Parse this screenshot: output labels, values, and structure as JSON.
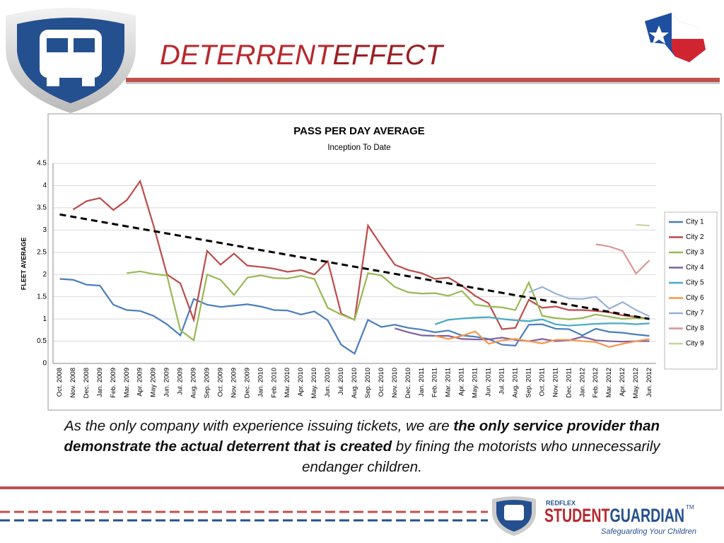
{
  "header": {
    "title_a": "DETERRENT",
    "title_b": "EFFECT"
  },
  "chart_data": {
    "type": "line",
    "title": "PASS PER DAY AVERAGE",
    "subtitle": "Inception To Date",
    "ylabel": "FLEET AVERAGE",
    "categories": [
      "Oct. 2008",
      "Nov. 2008",
      "Dec. 2008",
      "Jan. 2009",
      "Feb. 2009",
      "Mar. 2009",
      "Apr. 2009",
      "May 2009",
      "Jun. 2009",
      "Jul. 2009",
      "Aug. 2009",
      "Sep. 2009",
      "Oct. 2009",
      "Nov. 2009",
      "Dec. 2009",
      "Jan. 2010",
      "Feb. 2010",
      "Mar. 2010",
      "Apr. 2010",
      "May. 2010",
      "Jun. 2010",
      "Jul. 2010",
      "Aug. 2010",
      "Sep. 2010",
      "Oct. 2010",
      "Nov. 2010",
      "Dec. 2010",
      "Jan. 2011",
      "Feb. 2011",
      "Mar. 2011",
      "Apr. 2011",
      "May. 2011",
      "Jun. 2011",
      "Jul. 2011",
      "Aug. 2011",
      "Sep. 2011",
      "Oct. 2011",
      "Nov. 2011",
      "Dec. 2011",
      "Jan. 2012",
      "Feb. 2012",
      "Mar. 2012",
      "Apr. 2012",
      "May. 2012",
      "Jun. 2012"
    ],
    "series": [
      {
        "name": "City 1",
        "color": "#4a7ebb",
        "values": [
          1.9,
          1.88,
          1.77,
          1.75,
          1.32,
          1.2,
          1.18,
          1.07,
          0.88,
          0.63,
          1.45,
          1.32,
          1.27,
          1.3,
          1.33,
          1.28,
          1.2,
          1.19,
          1.1,
          1.17,
          0.97,
          0.42,
          0.22,
          0.98,
          0.82,
          0.87,
          0.8,
          0.76,
          0.7,
          0.74,
          0.63,
          0.6,
          0.55,
          0.42,
          0.4,
          0.87,
          0.88,
          0.78,
          0.77,
          0.63,
          0.78,
          0.71,
          0.69,
          0.65,
          0.62
        ]
      },
      {
        "name": "City 2",
        "color": "#be4b48",
        "values": [
          null,
          3.46,
          3.65,
          3.72,
          3.45,
          3.67,
          4.1,
          3.1,
          2.0,
          1.8,
          0.98,
          2.53,
          2.22,
          2.47,
          2.2,
          2.17,
          2.13,
          2.06,
          2.1,
          2.0,
          2.3,
          1.12,
          0.98,
          3.1,
          2.65,
          2.22,
          2.1,
          2.03,
          1.9,
          1.93,
          1.75,
          1.52,
          1.35,
          0.77,
          0.8,
          1.43,
          1.25,
          1.28,
          1.2,
          1.2,
          1.18,
          1.15,
          1.08,
          1.05,
          1.0
        ]
      },
      {
        "name": "City 3",
        "color": "#98b954",
        "values": [
          null,
          null,
          null,
          null,
          null,
          2.03,
          2.07,
          2.01,
          1.98,
          0.75,
          0.52,
          2.0,
          1.88,
          1.54,
          1.93,
          1.98,
          1.92,
          1.91,
          1.97,
          1.9,
          1.25,
          1.1,
          0.98,
          2.03,
          1.98,
          1.72,
          1.6,
          1.57,
          1.58,
          1.52,
          1.63,
          1.32,
          1.28,
          1.26,
          1.2,
          1.82,
          1.07,
          1.02,
          0.99,
          1.02,
          1.1,
          1.05,
          1.0,
          1.02,
          1.0
        ]
      },
      {
        "name": "City 4",
        "color": "#7d60a0",
        "values": [
          null,
          null,
          null,
          null,
          null,
          null,
          null,
          null,
          null,
          null,
          null,
          null,
          null,
          null,
          null,
          null,
          null,
          null,
          null,
          null,
          null,
          null,
          null,
          null,
          null,
          0.79,
          0.7,
          0.63,
          0.62,
          0.62,
          0.55,
          0.54,
          0.54,
          0.58,
          0.53,
          0.5,
          0.55,
          0.5,
          0.52,
          0.6,
          0.52,
          0.5,
          0.49,
          0.5,
          0.5
        ]
      },
      {
        "name": "City 5",
        "color": "#46aac5",
        "values": [
          null,
          null,
          null,
          null,
          null,
          null,
          null,
          null,
          null,
          null,
          null,
          null,
          null,
          null,
          null,
          null,
          null,
          null,
          null,
          null,
          null,
          null,
          null,
          null,
          null,
          null,
          null,
          null,
          0.88,
          0.98,
          1.01,
          1.03,
          1.04,
          1.0,
          0.97,
          0.95,
          0.99,
          0.88,
          0.85,
          0.87,
          0.89,
          0.9,
          0.9,
          0.88,
          0.9
        ]
      },
      {
        "name": "City 6",
        "color": "#f79646",
        "values": [
          null,
          null,
          null,
          null,
          null,
          null,
          null,
          null,
          null,
          null,
          null,
          null,
          null,
          null,
          null,
          null,
          null,
          null,
          null,
          null,
          null,
          null,
          null,
          null,
          null,
          null,
          null,
          null,
          0.62,
          0.55,
          0.62,
          0.72,
          0.44,
          0.52,
          0.55,
          0.5,
          0.45,
          0.53,
          0.53,
          0.5,
          0.48,
          0.37,
          0.44,
          0.5,
          0.55
        ]
      },
      {
        "name": "City 7",
        "color": "#95b3d7",
        "values": [
          null,
          null,
          null,
          null,
          null,
          null,
          null,
          null,
          null,
          null,
          null,
          null,
          null,
          null,
          null,
          null,
          null,
          null,
          null,
          null,
          null,
          null,
          null,
          null,
          null,
          null,
          null,
          null,
          null,
          null,
          null,
          null,
          null,
          null,
          null,
          1.6,
          1.72,
          1.57,
          1.46,
          1.45,
          1.5,
          1.23,
          1.38,
          1.2,
          1.06
        ]
      },
      {
        "name": "City 8",
        "color": "#d99694",
        "values": [
          null,
          null,
          null,
          null,
          null,
          null,
          null,
          null,
          null,
          null,
          null,
          null,
          null,
          null,
          null,
          null,
          null,
          null,
          null,
          null,
          null,
          null,
          null,
          null,
          null,
          null,
          null,
          null,
          null,
          null,
          null,
          null,
          null,
          null,
          null,
          null,
          null,
          null,
          null,
          null,
          2.68,
          2.63,
          2.53,
          2.02,
          2.32
        ]
      },
      {
        "name": "City 9",
        "color": "#c3d69b",
        "values": [
          null,
          null,
          null,
          null,
          null,
          null,
          null,
          null,
          null,
          null,
          null,
          null,
          null,
          null,
          null,
          null,
          null,
          null,
          null,
          null,
          null,
          null,
          null,
          null,
          null,
          null,
          null,
          null,
          null,
          null,
          null,
          null,
          null,
          null,
          null,
          null,
          null,
          null,
          null,
          null,
          null,
          null,
          null,
          3.12,
          3.1
        ]
      }
    ],
    "trendline": [
      3.35,
      1.0
    ],
    "ylim": [
      0,
      4.5
    ],
    "yticks": [
      0,
      0.5,
      1,
      1.5,
      2,
      2.5,
      3,
      3.5,
      4,
      4.5
    ],
    "grid": true,
    "legend": "right"
  },
  "body": {
    "text_1": "As the only company with experience issuing tickets, we are ",
    "text_bold": "the only service provider than demonstrate the actual deterrent that is created",
    "text_2": " by fining the motorists who unnecessarily endanger children."
  },
  "footer": {
    "brand_top": "REDFLEX",
    "brand_a": "STUDENT",
    "brand_b": "GUARDIAN",
    "tm": "TM",
    "tagline": "Safeguarding Your Children"
  }
}
